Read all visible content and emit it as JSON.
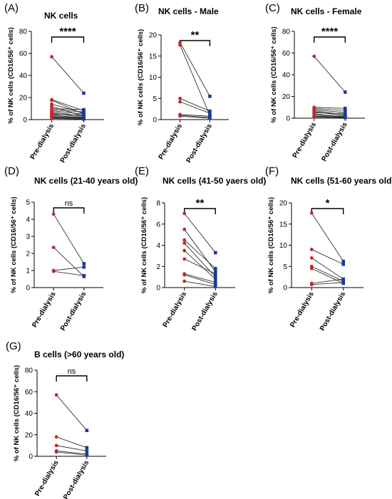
{
  "chart_data": [
    {
      "panel": "(A)",
      "title": "NK cells",
      "type": "scatter",
      "ylabel": "% of NK cells (CD16/56⁺ cells)",
      "ylim": [
        0,
        80
      ],
      "yticks": [
        0,
        20,
        40,
        60,
        80
      ],
      "categories": [
        "Pre-dialysis",
        "Post-dialysis"
      ],
      "significance": "****",
      "pairs": [
        [
          57,
          24
        ],
        [
          18,
          8
        ],
        [
          17.5,
          5
        ],
        [
          14,
          6
        ],
        [
          12,
          3
        ],
        [
          10,
          9
        ],
        [
          9,
          7
        ],
        [
          8,
          5
        ],
        [
          7,
          3
        ],
        [
          6,
          2
        ],
        [
          5,
          4
        ],
        [
          4.5,
          1
        ],
        [
          4,
          1.5
        ],
        [
          3,
          1
        ],
        [
          2.5,
          2
        ],
        [
          2,
          1
        ],
        [
          1.5,
          0.5
        ],
        [
          1,
          0.5
        ]
      ]
    },
    {
      "panel": "(B)",
      "title": "NK cells - Male",
      "type": "scatter",
      "ylabel": "% of NK cells (CD16/56⁺ cells)",
      "ylim": [
        0,
        20
      ],
      "yticks": [
        0,
        5,
        10,
        15,
        20
      ],
      "categories": [
        "Pre-dialysis",
        "Post-dialysis"
      ],
      "significance": "**",
      "pairs": [
        [
          18.2,
          5.5
        ],
        [
          17.6,
          1.0
        ],
        [
          5.0,
          2.0
        ],
        [
          4.2,
          1.5
        ],
        [
          1.2,
          0.8
        ],
        [
          1.0,
          0.5
        ],
        [
          0.8,
          0.3
        ]
      ]
    },
    {
      "panel": "(C)",
      "title": "NK cells - Female",
      "type": "scatter",
      "ylabel": "% of NK cells (CD16/56⁺ cells)",
      "ylim": [
        0,
        80
      ],
      "yticks": [
        0,
        20,
        40,
        60,
        80
      ],
      "categories": [
        "Pre-dialysis",
        "Post-dialysis"
      ],
      "significance": "****",
      "pairs": [
        [
          57,
          24
        ],
        [
          10,
          9
        ],
        [
          9,
          7
        ],
        [
          8,
          5
        ],
        [
          7,
          3
        ],
        [
          6,
          2
        ],
        [
          5,
          4
        ],
        [
          4,
          1
        ],
        [
          3,
          1.5
        ],
        [
          2,
          1
        ],
        [
          1.5,
          0.5
        ],
        [
          1,
          0.5
        ]
      ]
    },
    {
      "panel": "(D)",
      "title": "NK cells (21-40 years old)",
      "type": "scatter",
      "ylabel": "% of NK cells (CD16/56⁺ cells)",
      "ylim": [
        0,
        5
      ],
      "yticks": [
        0,
        1,
        2,
        3,
        4,
        5
      ],
      "categories": [
        "Pre-dialysis",
        "Post-dialysis"
      ],
      "significance": "ns",
      "pairs": [
        [
          4.3,
          1.4
        ],
        [
          2.35,
          0.65
        ],
        [
          1.0,
          1.2
        ],
        [
          0.95,
          0.7
        ]
      ]
    },
    {
      "panel": "(E)",
      "title": "NK cells (41-50 yaers old)",
      "type": "scatter",
      "ylabel": "% of NK cells (CD16/56⁺ cells)",
      "ylim": [
        0,
        8
      ],
      "yticks": [
        0,
        2,
        4,
        6,
        8
      ],
      "categories": [
        "Pre-dialysis",
        "Post-dialysis"
      ],
      "significance": "**",
      "pairs": [
        [
          7.0,
          3.3
        ],
        [
          5.5,
          1.5
        ],
        [
          4.5,
          1.8
        ],
        [
          4.2,
          1.0
        ],
        [
          3.5,
          0.8
        ],
        [
          2.7,
          1.3
        ],
        [
          1.3,
          0.5
        ],
        [
          1.2,
          0.3
        ],
        [
          0.6,
          0.1
        ]
      ]
    },
    {
      "panel": "(F)",
      "title": "NK cells (51-60 years old)",
      "type": "scatter",
      "ylabel": "% of NK cells (CD16/56⁺ cells)",
      "ylim": [
        0,
        20
      ],
      "yticks": [
        0,
        5,
        10,
        15,
        20
      ],
      "categories": [
        "Pre-dialysis",
        "Post-dialysis"
      ],
      "significance": "*",
      "pairs": [
        [
          17.6,
          6.2
        ],
        [
          9.0,
          5.5
        ],
        [
          7.0,
          2.0
        ],
        [
          5.0,
          1.5
        ],
        [
          4.5,
          1.0
        ],
        [
          1.0,
          2.0
        ],
        [
          0.7,
          1.2
        ]
      ]
    },
    {
      "panel": "(G)",
      "title": "B cells (>60 years old)",
      "type": "scatter",
      "ylabel": "% of NK cells (CD16/56⁺ cells)",
      "ylim": [
        0,
        80
      ],
      "yticks": [
        0,
        20,
        40,
        60,
        80
      ],
      "categories": [
        "Pre-dialysis",
        "Post-dialysis"
      ],
      "significance": "ns",
      "pairs": [
        [
          57,
          24
        ],
        [
          18,
          8
        ],
        [
          10,
          5
        ],
        [
          5,
          2
        ],
        [
          4,
          1
        ]
      ]
    }
  ],
  "colors": {
    "pre": "#c0282d",
    "post": "#1f3a93",
    "line": "#333333"
  }
}
